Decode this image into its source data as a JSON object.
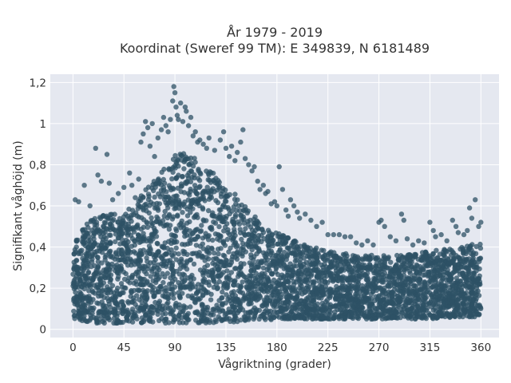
{
  "chart_data": {
    "type": "scatter",
    "title_lines": [
      "År 1979 - 2019",
      "Koordinat (Sweref 99 TM): E 349839, N 6181489"
    ],
    "xlabel": "Vågriktning (grader)",
    "ylabel": "Signifikant våghöjd (m)",
    "xlim": [
      -20,
      376
    ],
    "ylim": [
      -0.04,
      1.24
    ],
    "xticks": [
      0,
      45,
      90,
      135,
      180,
      225,
      270,
      315,
      360
    ],
    "xtick_labels": [
      "0",
      "45",
      "90",
      "135",
      "180",
      "225",
      "270",
      "315",
      "360"
    ],
    "yticks": [
      0,
      0.2,
      0.4,
      0.6,
      0.8,
      1.0,
      1.2
    ],
    "ytick_labels": [
      "0",
      "0,2",
      "0,4",
      "0,6",
      "0,8",
      "1",
      "1,2"
    ],
    "grid": true,
    "colors": {
      "marker": "#2e5166",
      "plot_bg": "#e5e8f0",
      "grid": "#ffffff"
    },
    "series": [
      {
        "dense_envelope": {
          "x": [
            0,
            10,
            20,
            30,
            45,
            60,
            75,
            90,
            100,
            110,
            120,
            135,
            150,
            165,
            180,
            200,
            225,
            250,
            270,
            290,
            315,
            340,
            360
          ],
          "y_min": [
            0.05,
            0.04,
            0.03,
            0.03,
            0.03,
            0.03,
            0.03,
            0.03,
            0.03,
            0.03,
            0.03,
            0.03,
            0.04,
            0.04,
            0.05,
            0.05,
            0.05,
            0.05,
            0.05,
            0.05,
            0.05,
            0.06,
            0.06
          ],
          "y_max": [
            0.44,
            0.5,
            0.55,
            0.58,
            0.56,
            0.65,
            0.75,
            0.85,
            0.86,
            0.82,
            0.78,
            0.7,
            0.62,
            0.52,
            0.47,
            0.42,
            0.38,
            0.36,
            0.36,
            0.36,
            0.38,
            0.4,
            0.42
          ]
        },
        "outliers": [
          [
            2,
            0.63
          ],
          [
            5,
            0.62
          ],
          [
            10,
            0.7
          ],
          [
            15,
            0.6
          ],
          [
            20,
            0.88
          ],
          [
            22,
            0.75
          ],
          [
            25,
            0.72
          ],
          [
            30,
            0.85
          ],
          [
            32,
            0.71
          ],
          [
            35,
            0.63
          ],
          [
            40,
            0.66
          ],
          [
            45,
            0.69
          ],
          [
            50,
            0.76
          ],
          [
            52,
            0.7
          ],
          [
            55,
            0.64
          ],
          [
            58,
            0.73
          ],
          [
            60,
            0.91
          ],
          [
            62,
            0.95
          ],
          [
            64,
            1.01
          ],
          [
            66,
            0.98
          ],
          [
            68,
            0.89
          ],
          [
            70,
            1.0
          ],
          [
            72,
            0.84
          ],
          [
            75,
            0.93
          ],
          [
            78,
            0.97
          ],
          [
            80,
            1.03
          ],
          [
            82,
            0.99
          ],
          [
            84,
            0.96
          ],
          [
            86,
            1.02
          ],
          [
            88,
            1.11
          ],
          [
            89,
            1.18
          ],
          [
            90,
            1.15
          ],
          [
            91,
            1.08
          ],
          [
            92,
            1.04
          ],
          [
            93,
            1.02
          ],
          [
            95,
            1.1
          ],
          [
            97,
            1.01
          ],
          [
            99,
            1.08
          ],
          [
            100,
            1.06
          ],
          [
            102,
            0.99
          ],
          [
            104,
            1.03
          ],
          [
            106,
            0.94
          ],
          [
            108,
            0.96
          ],
          [
            110,
            0.91
          ],
          [
            112,
            0.92
          ],
          [
            115,
            0.9
          ],
          [
            118,
            0.88
          ],
          [
            120,
            0.93
          ],
          [
            125,
            0.87
          ],
          [
            130,
            0.92
          ],
          [
            133,
            0.96
          ],
          [
            135,
            0.88
          ],
          [
            138,
            0.84
          ],
          [
            140,
            0.89
          ],
          [
            143,
            0.82
          ],
          [
            145,
            0.86
          ],
          [
            148,
            0.91
          ],
          [
            150,
            0.97
          ],
          [
            152,
            0.83
          ],
          [
            155,
            0.8
          ],
          [
            158,
            0.77
          ],
          [
            160,
            0.79
          ],
          [
            163,
            0.72
          ],
          [
            165,
            0.68
          ],
          [
            168,
            0.7
          ],
          [
            170,
            0.66
          ],
          [
            172,
            0.67
          ],
          [
            175,
            0.61
          ],
          [
            178,
            0.62
          ],
          [
            180,
            0.6
          ],
          [
            182,
            0.79
          ],
          [
            185,
            0.68
          ],
          [
            188,
            0.58
          ],
          [
            190,
            0.55
          ],
          [
            192,
            0.63
          ],
          [
            195,
            0.6
          ],
          [
            198,
            0.57
          ],
          [
            200,
            0.54
          ],
          [
            205,
            0.56
          ],
          [
            210,
            0.53
          ],
          [
            215,
            0.5
          ],
          [
            220,
            0.52
          ],
          [
            225,
            0.46
          ],
          [
            230,
            0.46
          ],
          [
            235,
            0.46
          ],
          [
            240,
            0.45
          ],
          [
            245,
            0.45
          ],
          [
            250,
            0.42
          ],
          [
            255,
            0.41
          ],
          [
            260,
            0.43
          ],
          [
            265,
            0.41
          ],
          [
            270,
            0.52
          ],
          [
            272,
            0.53
          ],
          [
            275,
            0.5
          ],
          [
            280,
            0.45
          ],
          [
            285,
            0.43
          ],
          [
            290,
            0.56
          ],
          [
            292,
            0.53
          ],
          [
            295,
            0.44
          ],
          [
            300,
            0.41
          ],
          [
            305,
            0.43
          ],
          [
            310,
            0.42
          ],
          [
            315,
            0.52
          ],
          [
            318,
            0.48
          ],
          [
            320,
            0.45
          ],
          [
            325,
            0.46
          ],
          [
            330,
            0.43
          ],
          [
            335,
            0.53
          ],
          [
            338,
            0.5
          ],
          [
            340,
            0.47
          ],
          [
            345,
            0.46
          ],
          [
            348,
            0.48
          ],
          [
            350,
            0.59
          ],
          [
            352,
            0.54
          ],
          [
            355,
            0.63
          ],
          [
            358,
            0.5
          ],
          [
            360,
            0.52
          ]
        ]
      }
    ]
  }
}
